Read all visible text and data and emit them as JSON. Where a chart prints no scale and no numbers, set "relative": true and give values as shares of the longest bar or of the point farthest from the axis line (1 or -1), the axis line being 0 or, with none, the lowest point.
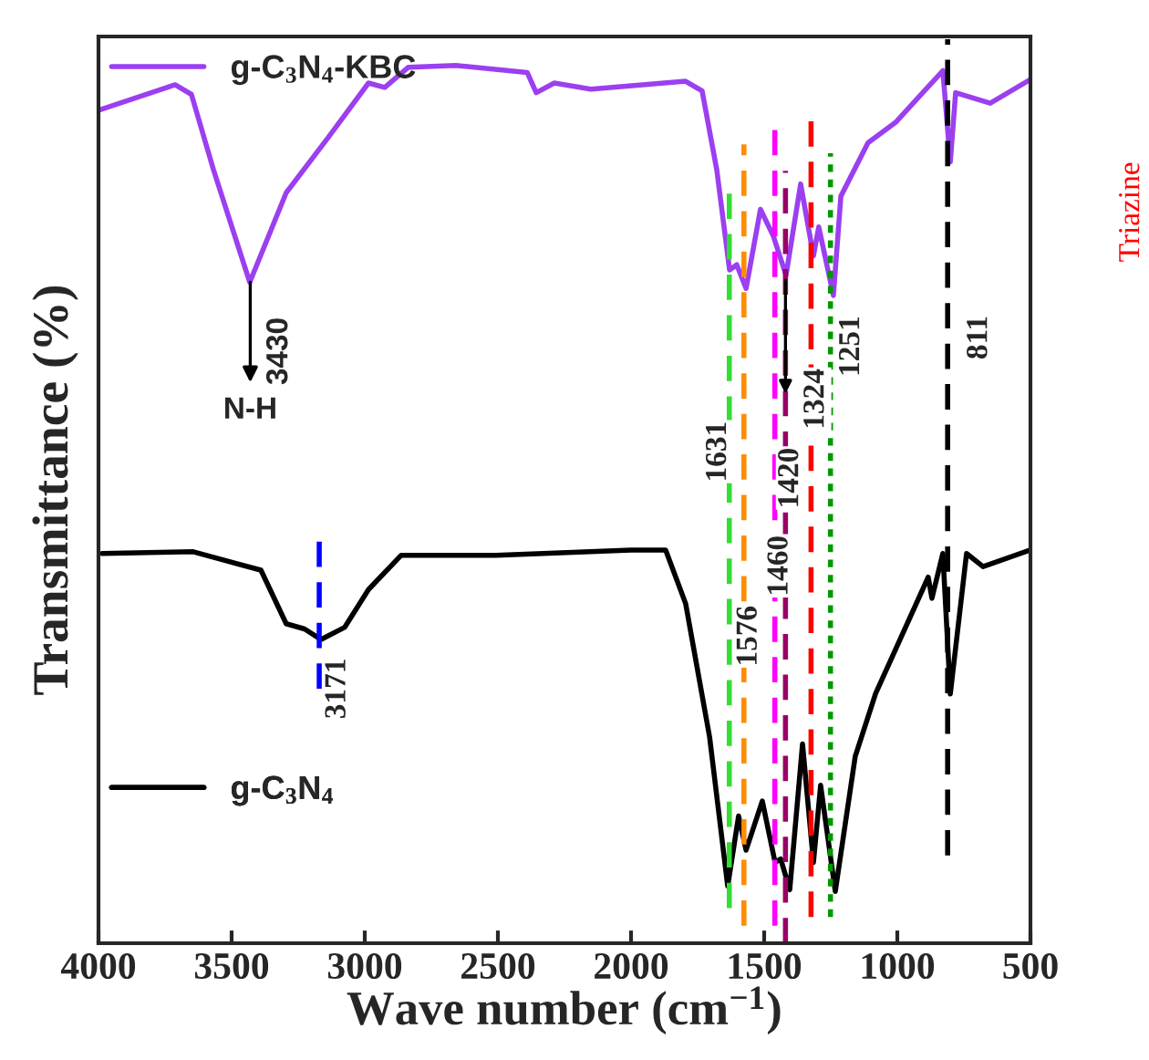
{
  "chart_data": {
    "type": "line",
    "relative": true,
    "xlabel": "Wave number (cm$^{−1}$)",
    "ylabel": "Transmittance (%)",
    "xlim": [
      4000,
      500
    ],
    "xticks": [
      4000,
      3500,
      3000,
      2500,
      2000,
      1500,
      1000,
      500
    ],
    "grid": false,
    "legend": "left",
    "marker": "none",
    "line_style": "solid",
    "series": [
      {
        "name": "g-C$_{3}$N$_{4}$-KBC",
        "color": "#9b3ff0",
        "x": [
          4000,
          3712,
          3651,
          3568,
          3432,
          3295,
          3137,
          2986,
          2925,
          2836,
          2658,
          2390,
          2356,
          2288,
          2151,
          1795,
          1733,
          1678,
          1630,
          1603,
          1568,
          1514,
          1466,
          1418,
          1363,
          1315,
          1295,
          1240,
          1212,
          1110,
          1007,
          829,
          801,
          781,
          651,
          500
        ],
        "values": [
          0.949,
          0.978,
          0.967,
          0.881,
          0.753,
          0.855,
          0.918,
          0.98,
          0.975,
          0.998,
          1.0,
          0.992,
          0.969,
          0.98,
          0.973,
          0.982,
          0.971,
          0.881,
          0.767,
          0.773,
          0.746,
          0.836,
          0.806,
          0.761,
          0.865,
          0.783,
          0.816,
          0.738,
          0.851,
          0.912,
          0.935,
          0.994,
          0.89,
          0.969,
          0.957,
          0.984
        ]
      },
      {
        "name": "g-C$_{3}$N$_{4}$",
        "color": "#000000",
        "x": [
          3986,
          3644,
          3390,
          3295,
          3226,
          3164,
          3075,
          2986,
          2863,
          2507,
          2000,
          1870,
          1795,
          1705,
          1637,
          1596,
          1568,
          1507,
          1459,
          1438,
          1404,
          1356,
          1315,
          1288,
          1233,
          1158,
          1082,
          884,
          870,
          829,
          801,
          740,
          678,
          500
        ],
        "values": [
          0.444,
          0.446,
          0.425,
          0.364,
          0.358,
          0.346,
          0.36,
          0.403,
          0.442,
          0.442,
          0.448,
          0.448,
          0.387,
          0.235,
          0.065,
          0.145,
          0.106,
          0.162,
          0.092,
          0.096,
          0.061,
          0.227,
          0.092,
          0.18,
          0.059,
          0.213,
          0.284,
          0.417,
          0.393,
          0.444,
          0.284,
          0.444,
          0.429,
          0.448
        ]
      }
    ],
    "ref_lines": [
      {
        "axis": "x",
        "value": 3171,
        "label": "3171",
        "color": "#0000ff",
        "line_style": "dashed"
      },
      {
        "axis": "x",
        "value": 1631,
        "label": "1631",
        "color": "#33dd33",
        "line_style": "dashed"
      },
      {
        "axis": "x",
        "value": 1576,
        "label": "1576",
        "color": "#ff8c00",
        "line_style": "dashed"
      },
      {
        "axis": "x",
        "value": 1460,
        "label": "1460",
        "color": "#ff00ff",
        "line_style": "dashed"
      },
      {
        "axis": "x",
        "value": 1420,
        "label": "1420",
        "color": "#990066",
        "line_style": "dashed"
      },
      {
        "axis": "x",
        "value": 1324,
        "label": "1324",
        "color": "#ff0000",
        "line_style": "dashed"
      },
      {
        "axis": "x",
        "value": 1251,
        "label": "1251",
        "color": "#009900",
        "line_style": "dotted"
      },
      {
        "axis": "x",
        "value": 811,
        "label": "811",
        "color": "#000000",
        "line_style": "dashed"
      }
    ],
    "annotations": [
      {
        "text": "3430",
        "x": 3430,
        "y": 0.753
      },
      {
        "text": "N-H",
        "x": 3430,
        "y": 0.753
      },
      "Triazine"
    ]
  }
}
